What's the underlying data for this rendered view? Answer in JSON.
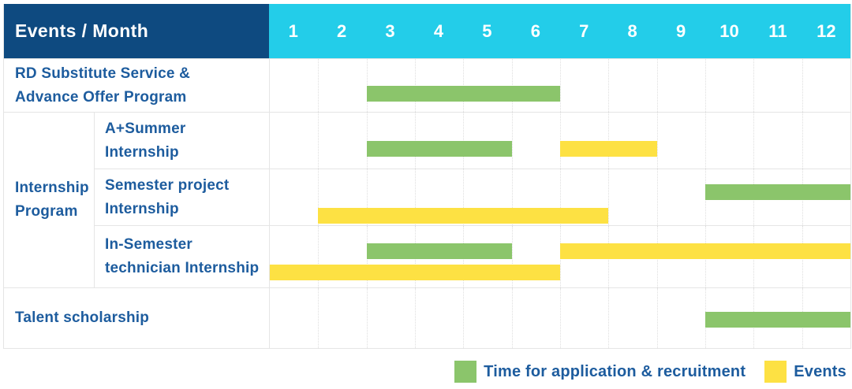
{
  "colors": {
    "header_bg": "#0E4A80",
    "months_bg": "#23CDE9",
    "header_text": "#FFFFFF",
    "label_text": "#1D5C9E",
    "grid_line": "#E5E5E5",
    "application_bar": "#8BC56B",
    "event_bar": "#FDE143"
  },
  "table": {
    "corner_title": "Events / Month",
    "group_label": "Internship Program",
    "group_label_lines": [
      "Internship",
      "Program"
    ]
  },
  "chart_data": {
    "type": "gantt",
    "title": "Events / Month",
    "x_unit": "month",
    "x_range": [
      1,
      12
    ],
    "x_ticks": [
      "1",
      "2",
      "3",
      "4",
      "5",
      "6",
      "7",
      "8",
      "9",
      "10",
      "11",
      "12"
    ],
    "grid": true,
    "legend_position": "bottom-right",
    "rows": [
      {
        "label": "RD Substitute Service & Advance Offer Program",
        "label_lines": [
          "RD Substitute Service &",
          "Advance Offer Program"
        ],
        "group": null,
        "bars": [
          {
            "type": "application",
            "start_month": 3,
            "end_month": 6,
            "track": 0
          }
        ]
      },
      {
        "label": "A+Summer Internship",
        "label_lines": [
          "A+Summer",
          "Internship"
        ],
        "group": "Internship Program",
        "bars": [
          {
            "type": "application",
            "start_month": 3,
            "end_month": 5,
            "track": 0
          },
          {
            "type": "event",
            "start_month": 7,
            "end_month": 8,
            "track": 0
          }
        ]
      },
      {
        "label": "Semester project Internship",
        "label_lines": [
          "Semester project",
          "Internship"
        ],
        "group": "Internship Program",
        "bars": [
          {
            "type": "application",
            "start_month": 10,
            "end_month": 12,
            "track": 0
          },
          {
            "type": "event",
            "start_month": 2,
            "end_month": 7,
            "track": 1
          }
        ]
      },
      {
        "label": "In-Semester technician Internship",
        "label_lines": [
          "In-Semester",
          "technician Internship"
        ],
        "group": "Internship Program",
        "bars": [
          {
            "type": "application",
            "start_month": 3,
            "end_month": 5,
            "track": 0
          },
          {
            "type": "event",
            "start_month": 7,
            "end_month": 12,
            "track": 0
          },
          {
            "type": "event",
            "start_month": 1,
            "end_month": 6,
            "track": 1
          }
        ]
      },
      {
        "label": "Talent scholarship",
        "label_lines": [
          "Talent scholarship"
        ],
        "group": null,
        "bars": [
          {
            "type": "application",
            "start_month": 10,
            "end_month": 12,
            "track": 0
          }
        ]
      }
    ],
    "legend": [
      {
        "type": "application",
        "label": "Time for application & recruitment",
        "color": "#8BC56B"
      },
      {
        "type": "event",
        "label": "Events",
        "color": "#FDE143"
      }
    ]
  }
}
